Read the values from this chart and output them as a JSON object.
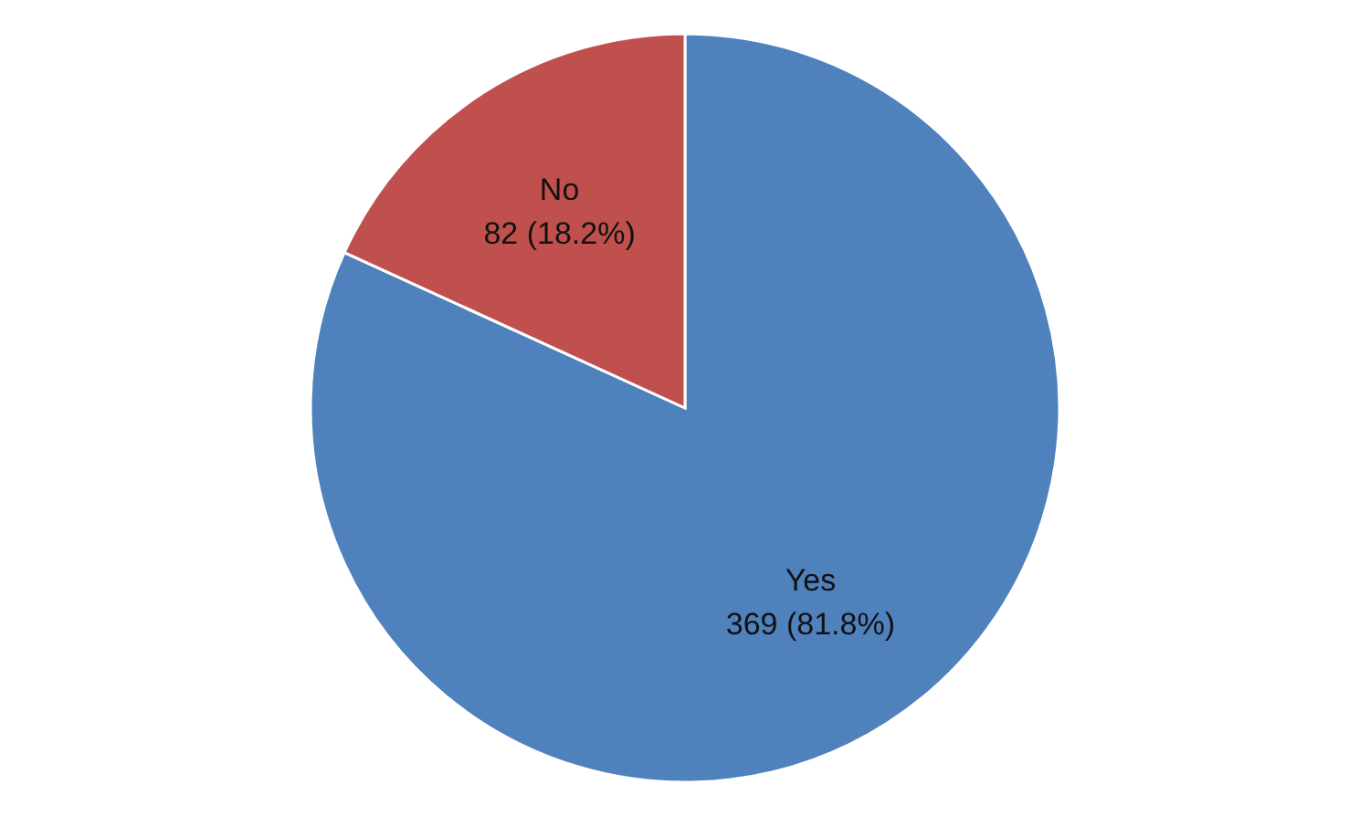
{
  "chart_data": {
    "type": "pie",
    "categories": [
      "Yes",
      "No"
    ],
    "values": [
      369,
      82
    ],
    "colors": [
      "#4f81bd",
      "#c0504d"
    ],
    "value_labels": [
      "369 (81.8%)",
      "82 (18.2%)"
    ],
    "legend": false
  }
}
